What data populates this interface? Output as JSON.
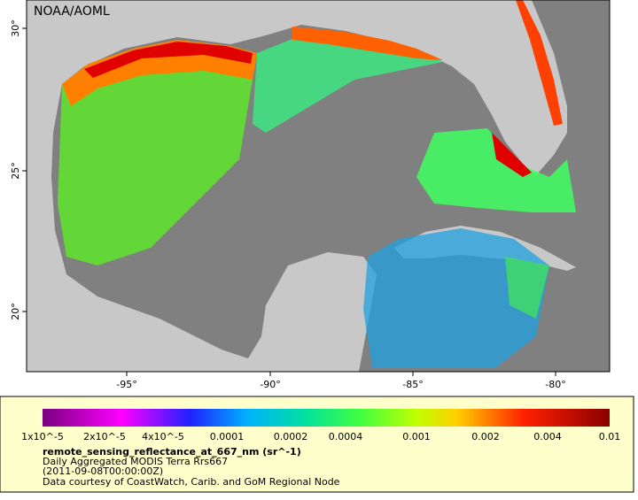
{
  "map": {
    "credit": "NOAA/AOML",
    "x_ticks": [
      "-95°",
      "-90°",
      "-85°",
      "-80°"
    ],
    "y_ticks": [
      "30°",
      "25°",
      "20°"
    ],
    "colorbar": {
      "ticks": [
        "1x10^-5",
        "2x10^-5",
        "4x10^-5",
        "0.0001",
        "0.0002",
        "0.0004",
        "0.001",
        "0.002",
        "0.004",
        "0.01"
      ]
    },
    "legend": {
      "variable": "remote_sensing_reflectance_at_667_nm (sr^-1)",
      "dataset": "Daily Aggregated MODIS Terra Rrs667",
      "time": "(2011-09-08T00:00:00Z)",
      "source": "Data courtesy of CoastWatch, Carib. and GoM Regional Node"
    }
  }
}
